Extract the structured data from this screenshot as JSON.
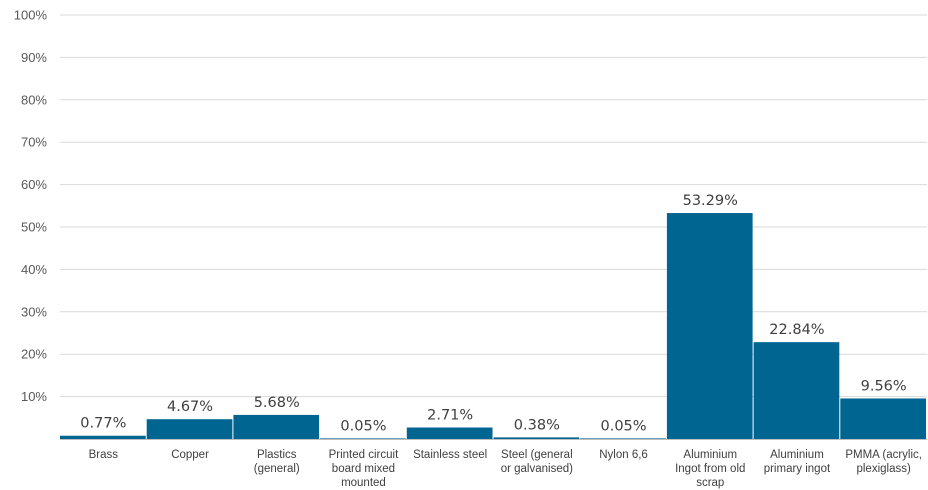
{
  "chart_data": {
    "type": "bar",
    "title": "",
    "xlabel": "",
    "ylabel": "",
    "ylim": [
      0,
      100
    ],
    "grid": true,
    "legend": "none",
    "bar_color": "#006590",
    "yticks": [
      "10%",
      "20%",
      "30%",
      "40%",
      "50%",
      "60%",
      "70%",
      "80%",
      "90%",
      "100%"
    ],
    "categories": [
      [
        "Brass"
      ],
      [
        "Copper"
      ],
      [
        "Plastics",
        "(general)"
      ],
      [
        "Printed circuit",
        "board mixed",
        "mounted"
      ],
      [
        "Stainless steel"
      ],
      [
        "Steel (general",
        "or galvanised)"
      ],
      [
        "Nylon 6,6"
      ],
      [
        "Aluminium",
        "Ingot from old",
        "scrap"
      ],
      [
        "Aluminium",
        "primary ingot"
      ],
      [
        "PMMA (acrylic,",
        "plexiglass)"
      ]
    ],
    "values": [
      0.77,
      4.67,
      5.68,
      0.05,
      2.71,
      0.38,
      0.05,
      53.29,
      22.84,
      9.56
    ],
    "data_labels": [
      "0.77%",
      "4.67%",
      "5.68%",
      "0.05%",
      "2.71%",
      "0.38%",
      "0.05%",
      "53.29%",
      "22.84%",
      "9.56%"
    ]
  }
}
